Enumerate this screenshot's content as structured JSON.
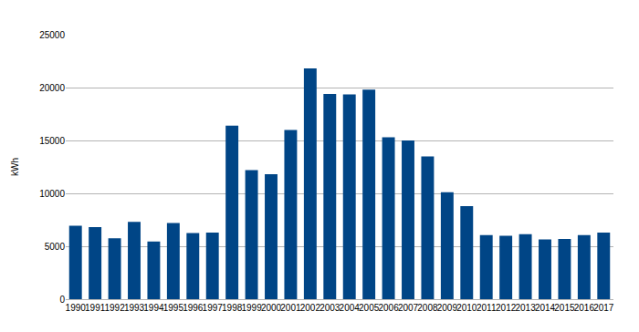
{
  "chart_data": {
    "type": "bar",
    "y_label": "kWh",
    "categories": [
      "1990",
      "1991",
      "1992",
      "1993",
      "1994",
      "1995",
      "1996",
      "1997",
      "1998",
      "1999",
      "2000",
      "2001",
      "2002",
      "2003",
      "2004",
      "2005",
      "2006",
      "2007",
      "2008",
      "2009",
      "2010",
      "2011",
      "2012",
      "2013",
      "2014",
      "2015",
      "2016",
      "2017"
    ],
    "values": [
      6950,
      6800,
      5750,
      7300,
      5450,
      7200,
      6250,
      6300,
      16400,
      12200,
      11800,
      16000,
      21800,
      19400,
      19350,
      19800,
      15300,
      15000,
      13500,
      10100,
      8800,
      6050,
      6000,
      6150,
      5650,
      5700,
      6050,
      6300
    ],
    "color": "#004586",
    "ylim": [
      0,
      25000
    ],
    "yticks": [
      0,
      5000,
      10000,
      15000,
      20000,
      25000
    ],
    "grid": true
  }
}
